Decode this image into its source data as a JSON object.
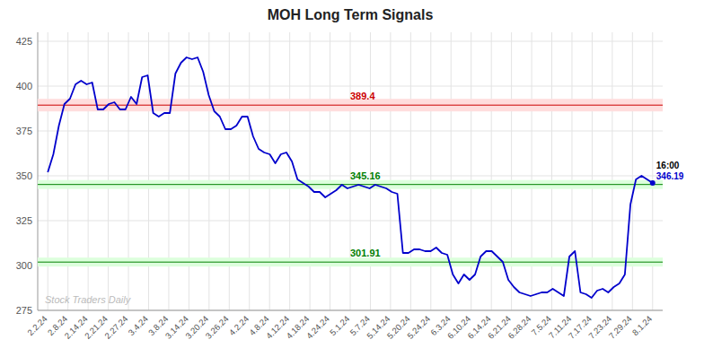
{
  "chart_data": {
    "type": "line",
    "title": "MOH Long Term Signals",
    "grid": true,
    "x": [
      0,
      0.2752,
      0.5505,
      0.8257,
      1.1009,
      1.3761,
      1.6514,
      1.9266,
      2.2018,
      2.4771,
      2.7523,
      3.0275,
      3.3028,
      3.578,
      3.8532,
      4.1284,
      4.4037,
      4.6789,
      4.9541,
      5.2294,
      5.5046,
      5.7798,
      6.055,
      6.3303,
      6.6055,
      6.8807,
      7.156,
      7.4312,
      7.7064,
      7.9817,
      8.2569,
      8.5321,
      8.8073,
      9.0826,
      9.3578,
      9.633,
      9.9083,
      10.1835,
      10.4587,
      10.7339,
      11.0092,
      11.2844,
      11.5596,
      11.8349,
      12.1101,
      12.3853,
      12.6606,
      12.9358,
      13.211,
      13.4862,
      13.7615,
      14.0367,
      14.3119,
      14.5872,
      14.8624,
      15.1376,
      15.4128,
      15.6881,
      15.9633,
      16.2385,
      16.5138,
      16.789,
      17.0642,
      17.3394,
      17.6147,
      17.8899,
      18.1651,
      18.4404,
      18.7156,
      18.9908,
      19.2661,
      19.5413,
      19.8165,
      20.0917,
      20.367,
      20.6422,
      20.9174,
      21.1927,
      21.4679,
      21.7431,
      22.0183,
      22.2936,
      22.5688,
      22.844,
      23.1193,
      23.3945,
      23.6697,
      23.945,
      24.2202,
      24.4954,
      24.7706,
      25.0459,
      25.3211,
      25.5963,
      25.8716,
      26.1468,
      26.422,
      26.6972,
      26.9725,
      27.2477,
      27.5229,
      27.7982,
      28.0734,
      28.3486,
      28.6239,
      28.8991,
      29.1743,
      29.4495,
      29.7248,
      30
    ],
    "series": [
      {
        "name": "MOH",
        "color": "#0000cc",
        "values": [
          352,
          362,
          378,
          390,
          393,
          401,
          403,
          401,
          402,
          387,
          387,
          390,
          391,
          387,
          387,
          394,
          390,
          405,
          406,
          385,
          383,
          385,
          385,
          407,
          413,
          416,
          415,
          416,
          408,
          395,
          386,
          383,
          376,
          376,
          378,
          383,
          383,
          372,
          365,
          363,
          362,
          357,
          362,
          363,
          358,
          348,
          346,
          344,
          341,
          341,
          338,
          340,
          342,
          345,
          343,
          344,
          345,
          344,
          343,
          345,
          344,
          343,
          341,
          340,
          307,
          307,
          309,
          309,
          308,
          308,
          310,
          307,
          306,
          295,
          290,
          295,
          292,
          295,
          305,
          308,
          308,
          305,
          302,
          292,
          288,
          285,
          284,
          283,
          284,
          285,
          285,
          287,
          285,
          283,
          305,
          308,
          285,
          284,
          282,
          286,
          287,
          285,
          288,
          290,
          295,
          334,
          348,
          350,
          348,
          346
        ]
      }
    ],
    "xlim": [
      -0.5,
      30.5
    ],
    "xticks": [
      {
        "value": 0,
        "label": "2.2.24"
      },
      {
        "value": 1,
        "label": "2.8.24"
      },
      {
        "value": 2,
        "label": "2.14.24"
      },
      {
        "value": 3,
        "label": "2.21.24"
      },
      {
        "value": 4,
        "label": "2.27.24"
      },
      {
        "value": 5,
        "label": "3.4.24"
      },
      {
        "value": 6,
        "label": "3.8.24"
      },
      {
        "value": 7,
        "label": "3.14.24"
      },
      {
        "value": 8,
        "label": "3.20.24"
      },
      {
        "value": 9,
        "label": "3.26.24"
      },
      {
        "value": 10,
        "label": "4.2.24"
      },
      {
        "value": 11,
        "label": "4.8.24"
      },
      {
        "value": 12,
        "label": "4.12.24"
      },
      {
        "value": 13,
        "label": "4.18.24"
      },
      {
        "value": 14,
        "label": "4.24.24"
      },
      {
        "value": 15,
        "label": "5.1.24"
      },
      {
        "value": 16,
        "label": "5.7.24"
      },
      {
        "value": 17,
        "label": "5.14.24"
      },
      {
        "value": 18,
        "label": "5.20.24"
      },
      {
        "value": 19,
        "label": "5.24.24"
      },
      {
        "value": 20,
        "label": "6.3.24"
      },
      {
        "value": 21,
        "label": "6.10.24"
      },
      {
        "value": 22,
        "label": "6.14.24"
      },
      {
        "value": 23,
        "label": "6.21.24"
      },
      {
        "value": 24,
        "label": "6.28.24"
      },
      {
        "value": 25,
        "label": "7.5.24"
      },
      {
        "value": 26,
        "label": "7.11.24"
      },
      {
        "value": 27,
        "label": "7.17.24"
      },
      {
        "value": 28,
        "label": "7.23.24"
      },
      {
        "value": 29,
        "label": "7.29.24"
      },
      {
        "value": 30,
        "label": "8.1.24"
      }
    ],
    "ylim": [
      275,
      430
    ],
    "yticks": [
      275,
      300,
      325,
      350,
      375,
      400,
      425
    ],
    "reference_lines": [
      {
        "value": 389.4,
        "label": "389.4",
        "color": "#cc0000",
        "band": [
          385.9,
          392.9
        ],
        "band_color": "#ffdddd"
      },
      {
        "value": 345.16,
        "label": "345.16",
        "color": "#008000",
        "band": [
          342.66,
          347.66
        ],
        "band_color": "#ddffdd"
      },
      {
        "value": 301.91,
        "label": "301.91",
        "color": "#008000",
        "band": [
          299.41,
          304.41
        ],
        "band_color": "#ddffdd"
      }
    ],
    "last_labels": [
      {
        "text": "16:00",
        "color": "#000000"
      },
      {
        "text": "346.19",
        "color": "#0000cc"
      }
    ],
    "watermark": {
      "text": "Stock Traders Daily",
      "color": "#bbbbbb"
    }
  }
}
